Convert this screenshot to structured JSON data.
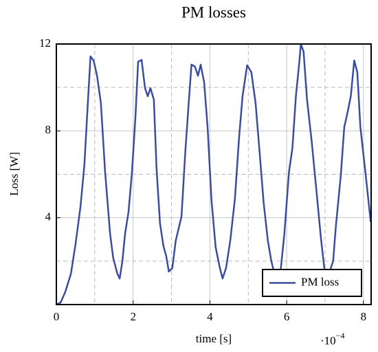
{
  "chart_data": {
    "type": "line",
    "title": "PM losses",
    "x_label": "time [s]",
    "y_label": "Loss [W]",
    "x_scale": {
      "base": "·10",
      "exponent": "−4"
    },
    "xlim": [
      0,
      8.2
    ],
    "ylim": [
      0,
      12
    ],
    "xticks": [
      0,
      2,
      4,
      6,
      8
    ],
    "yticks": [
      4,
      8,
      12
    ],
    "xminor": [
      1,
      3,
      5,
      7
    ],
    "yminor": [
      2,
      6,
      10
    ],
    "grid": true,
    "legend": "lower right",
    "x": [
      0.0,
      0.11,
      0.23,
      0.38,
      0.5,
      0.63,
      0.73,
      0.82,
      0.89,
      0.97,
      1.06,
      1.16,
      1.27,
      1.4,
      1.48,
      1.59,
      1.65,
      1.72,
      1.79,
      1.88,
      1.97,
      2.06,
      2.13,
      2.22,
      2.31,
      2.38,
      2.45,
      2.54,
      2.61,
      2.7,
      2.79,
      2.86,
      2.93,
      3.02,
      3.11,
      3.26,
      3.36,
      3.45,
      3.52,
      3.61,
      3.69,
      3.76,
      3.85,
      3.94,
      4.04,
      4.15,
      4.26,
      4.33,
      4.42,
      4.53,
      4.65,
      4.76,
      4.85,
      4.97,
      5.08,
      5.19,
      5.3,
      5.4,
      5.51,
      5.6,
      5.69,
      5.76,
      5.83,
      5.94,
      6.06,
      6.15,
      6.24,
      6.33,
      6.37,
      6.44,
      6.53,
      6.65,
      6.78,
      6.89,
      6.98,
      7.05,
      7.12,
      7.21,
      7.28,
      7.41,
      7.5,
      7.58,
      7.67,
      7.76,
      7.84,
      7.92,
      8.03,
      8.19
    ],
    "series": [
      {
        "name": "PM loss",
        "color": "#3b4ca0",
        "values": [
          0,
          0.09,
          0.57,
          1.42,
          2.79,
          4.53,
          6.43,
          9.28,
          11.43,
          11.24,
          10.54,
          9.28,
          6.11,
          3.26,
          2.15,
          1.42,
          1.2,
          2.0,
          3.26,
          4.27,
          6.11,
          8.64,
          11.18,
          11.27,
          9.97,
          9.59,
          9.97,
          9.44,
          6.27,
          3.74,
          2.69,
          2.25,
          1.52,
          1.68,
          2.94,
          4.05,
          7.06,
          9.34,
          11.05,
          10.96,
          10.54,
          11.05,
          10.23,
          8.17,
          4.84,
          2.63,
          1.68,
          1.2,
          1.68,
          2.94,
          4.84,
          7.69,
          9.59,
          11.02,
          10.7,
          9.28,
          6.9,
          4.69,
          2.94,
          2.0,
          1.36,
          1.2,
          1.36,
          3.26,
          6.11,
          7.22,
          9.59,
          11.18,
          12.0,
          11.65,
          9.44,
          7.54,
          5.16,
          3.1,
          1.68,
          1.42,
          1.52,
          2.0,
          3.58,
          5.95,
          8.17,
          8.8,
          9.59,
          11.24,
          10.7,
          8.17,
          6.43,
          3.8
        ]
      }
    ]
  }
}
